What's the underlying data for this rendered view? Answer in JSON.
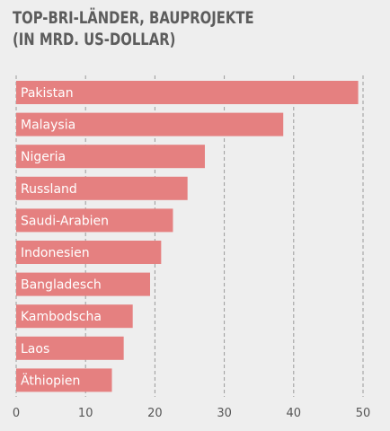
{
  "chart_data": {
    "type": "bar",
    "orientation": "horizontal",
    "title_line1": "TOP-BRI-LÄNDER, BAUPROJEKTE",
    "title_line2": "(IN MRD. US-DOLLAR)",
    "categories": [
      "Pakistan",
      "Malaysia",
      "Nigeria",
      "Russland",
      "Saudi-Arabien",
      "Indonesien",
      "Bangladesch",
      "Kambodscha",
      "Laos",
      "Äthiopien"
    ],
    "values": [
      49.3,
      38.5,
      27.2,
      24.7,
      22.6,
      20.9,
      19.3,
      16.8,
      15.5,
      13.8
    ],
    "xlim": [
      0,
      50
    ],
    "xticks": [
      "0",
      "10",
      "20",
      "30",
      "40",
      "50"
    ],
    "grid": true,
    "bar_color": "#e58080",
    "xlabel": "",
    "ylabel": ""
  }
}
